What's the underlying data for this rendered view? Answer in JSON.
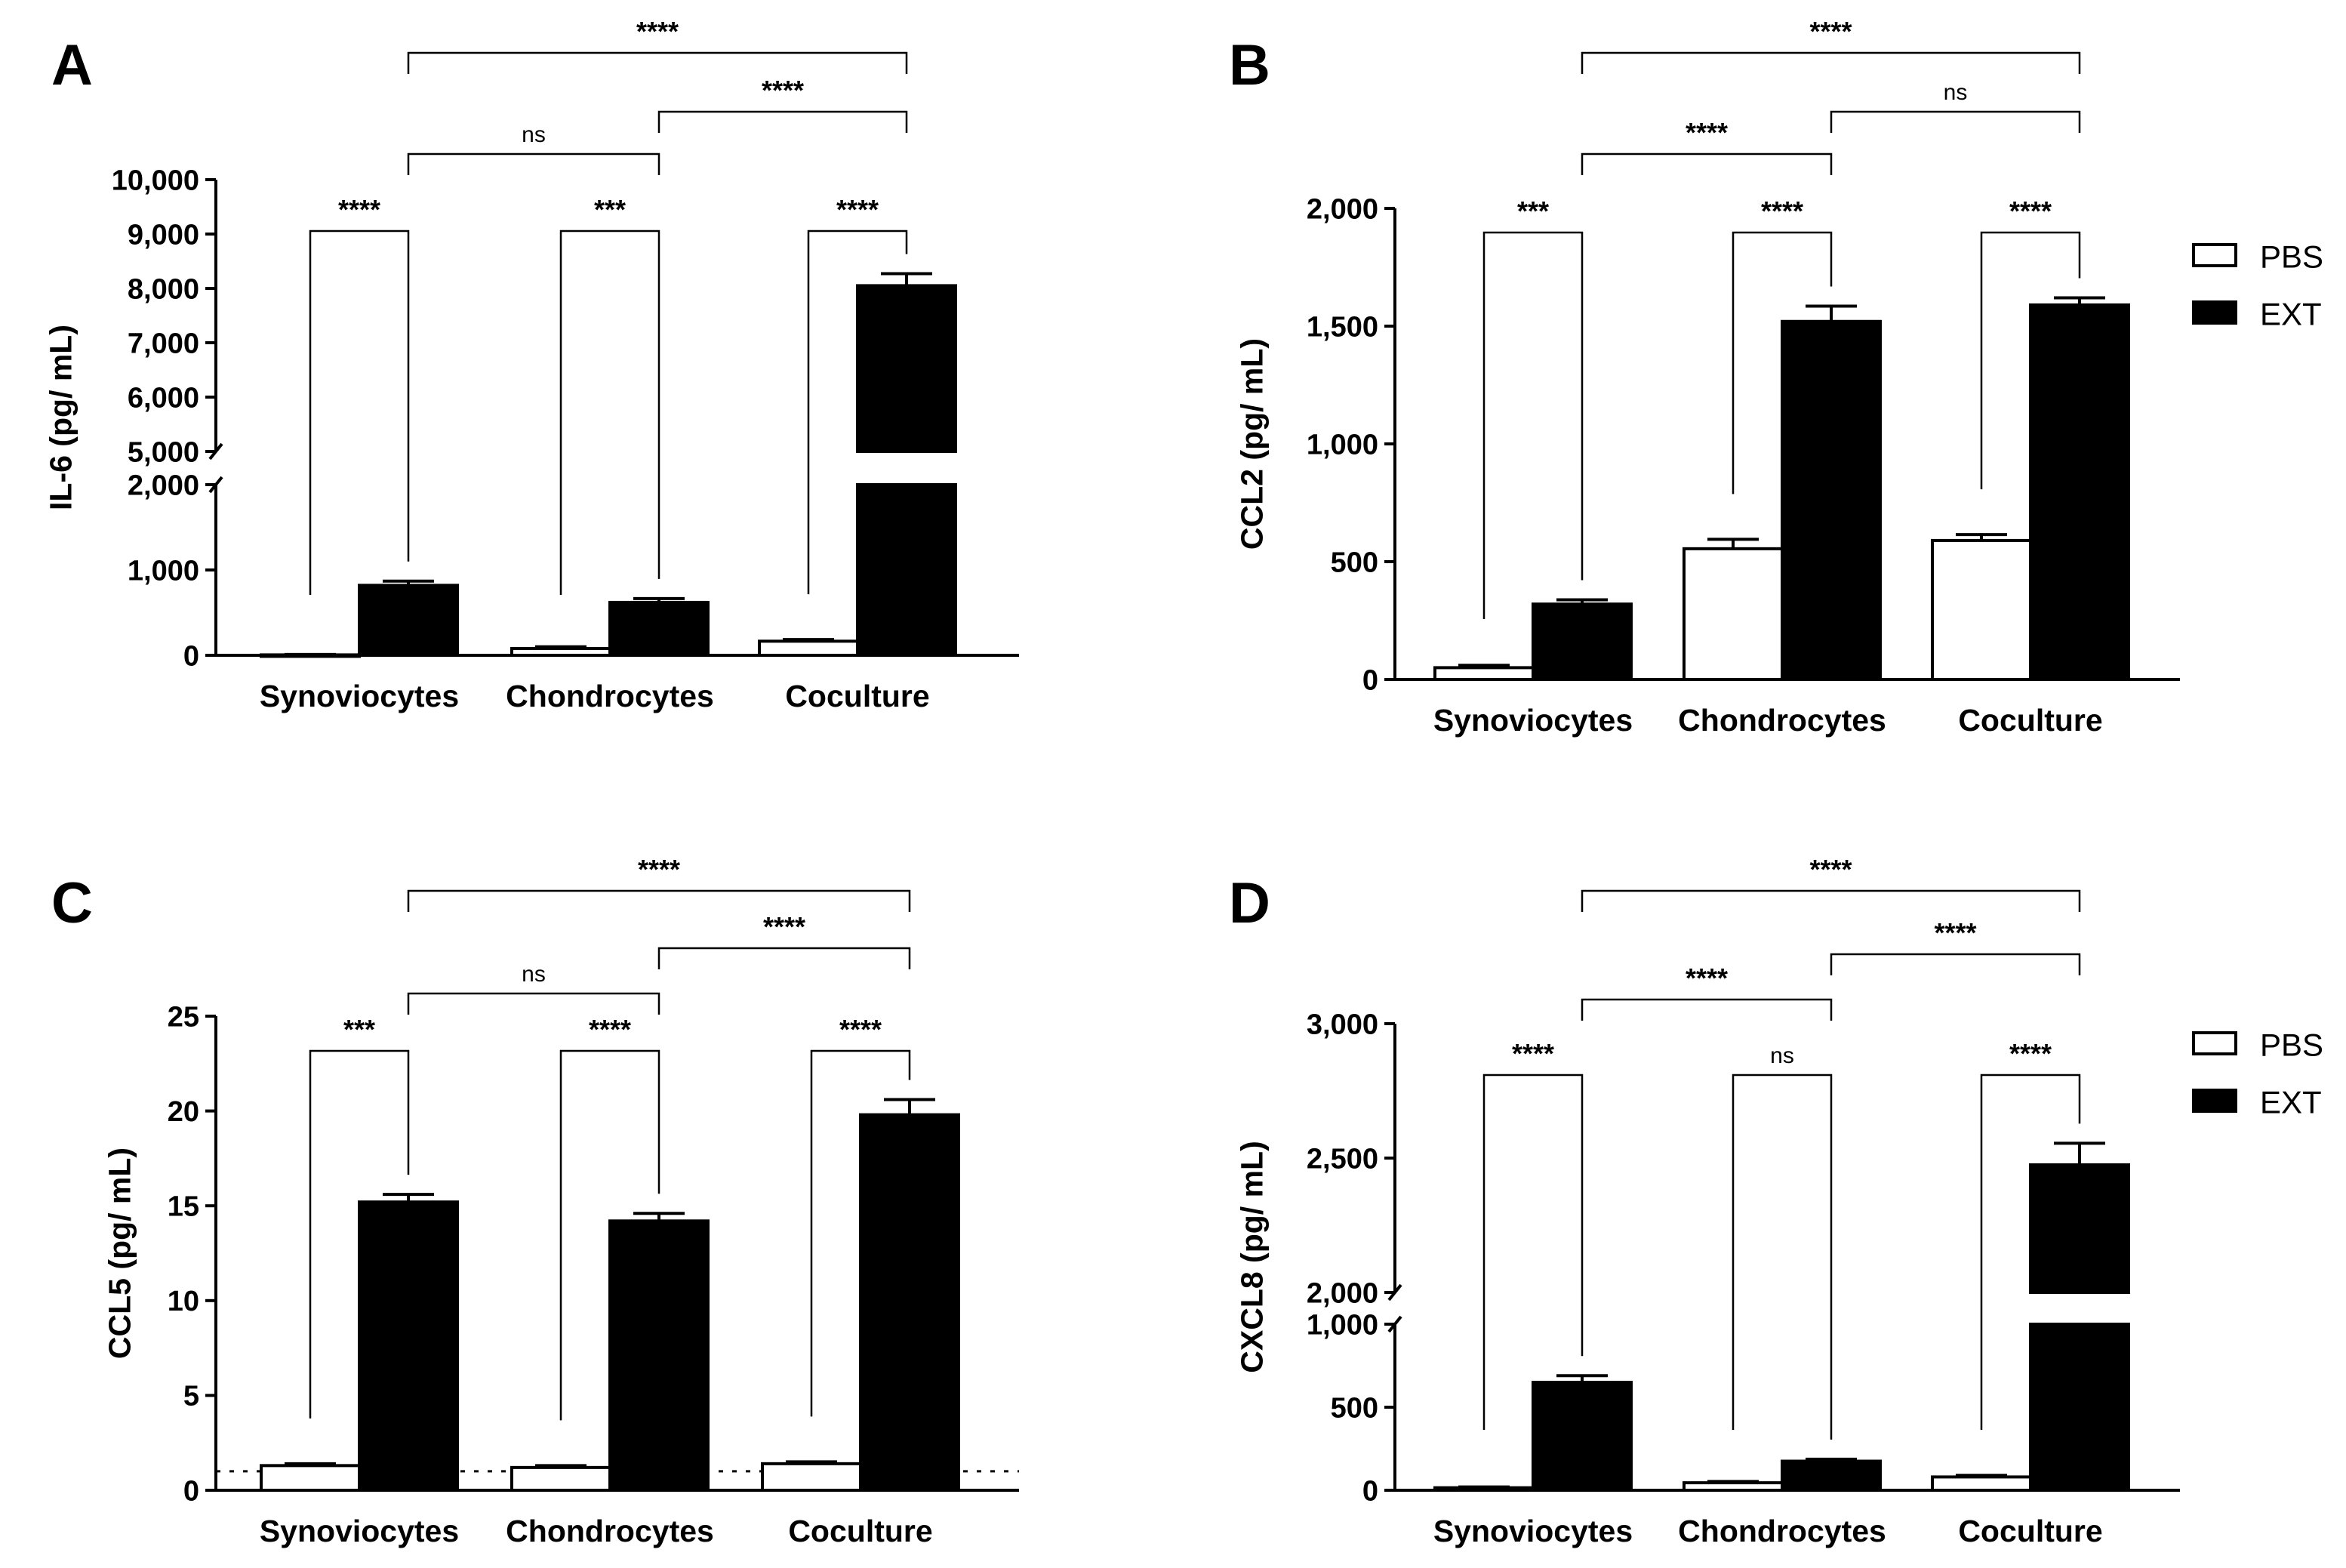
{
  "legend": {
    "items": [
      "PBS",
      "EXT"
    ],
    "colors": [
      "#ffffff",
      "#000000"
    ]
  },
  "chart_data": [
    {
      "panel": "A",
      "type": "bar",
      "ylabel": "IL-6 (pg/ mL)",
      "categories": [
        "Synoviocytes",
        "Chondrocytes",
        "Coculture"
      ],
      "series": [
        {
          "name": "PBS",
          "values": [
            5,
            80,
            165
          ],
          "errors": [
            5,
            20,
            20
          ]
        },
        {
          "name": "EXT",
          "values": [
            820,
            620,
            8050
          ],
          "errors": [
            50,
            45,
            220
          ]
        }
      ],
      "axis_break": {
        "lower": [
          0,
          2000
        ],
        "upper": [
          5000,
          10000
        ]
      },
      "yticks": [
        0,
        1000,
        2000,
        5000,
        6000,
        7000,
        8000,
        9000,
        10000
      ],
      "ytick_labels": [
        "0",
        "1,000",
        "2,000",
        "5,000",
        "6,000",
        "7,000",
        "8,000",
        "9,000",
        "10,000"
      ],
      "within": [
        "****",
        "***",
        "****"
      ],
      "between": [
        {
          "from": 0,
          "to": 1,
          "label": "ns"
        },
        {
          "from": 1,
          "to": 2,
          "label": "****"
        },
        {
          "from": 0,
          "to": 2,
          "label": "****"
        }
      ],
      "detection_limit": null
    },
    {
      "panel": "B",
      "type": "bar",
      "ylabel": "CCL2 (pg/ mL)",
      "categories": [
        "Synoviocytes",
        "Chondrocytes",
        "Coculture"
      ],
      "series": [
        {
          "name": "PBS",
          "values": [
            50,
            555,
            590
          ],
          "errors": [
            10,
            40,
            25
          ]
        },
        {
          "name": "EXT",
          "values": [
            320,
            1520,
            1590
          ],
          "errors": [
            18,
            65,
            30
          ]
        }
      ],
      "ylim": [
        0,
        2000
      ],
      "yticks": [
        0,
        500,
        1000,
        1500,
        2000
      ],
      "ytick_labels": [
        "0",
        "500",
        "1,000",
        "1,500",
        "2,000"
      ],
      "within": [
        "***",
        "****",
        "****"
      ],
      "between": [
        {
          "from": 0,
          "to": 1,
          "label": "****"
        },
        {
          "from": 1,
          "to": 2,
          "label": "ns"
        },
        {
          "from": 0,
          "to": 2,
          "label": "****"
        }
      ],
      "detection_limit": null
    },
    {
      "panel": "C",
      "type": "bar",
      "ylabel": "CCL5 (pg/ mL)",
      "categories": [
        "Synoviocytes",
        "Chondrocytes",
        "Coculture"
      ],
      "series": [
        {
          "name": "PBS",
          "values": [
            1.3,
            1.2,
            1.4
          ],
          "errors": [
            0.1,
            0.1,
            0.1
          ]
        },
        {
          "name": "EXT",
          "values": [
            15.2,
            14.2,
            19.8
          ],
          "errors": [
            0.4,
            0.4,
            0.8
          ]
        }
      ],
      "ylim": [
        0,
        25
      ],
      "yticks": [
        0,
        5,
        10,
        15,
        20,
        25
      ],
      "ytick_labels": [
        "0",
        "5",
        "10",
        "15",
        "20",
        "25"
      ],
      "within": [
        "***",
        "****",
        "****"
      ],
      "between": [
        {
          "from": 0,
          "to": 1,
          "label": "ns"
        },
        {
          "from": 1,
          "to": 2,
          "label": "****"
        },
        {
          "from": 0,
          "to": 2,
          "label": "****"
        }
      ],
      "detection_limit": 1.0
    },
    {
      "panel": "D",
      "type": "bar",
      "ylabel": "CXCL8 (pg/ mL)",
      "categories": [
        "Synoviocytes",
        "Chondrocytes",
        "Coculture"
      ],
      "series": [
        {
          "name": "PBS",
          "values": [
            15,
            45,
            80
          ],
          "errors": [
            5,
            8,
            10
          ]
        },
        {
          "name": "EXT",
          "values": [
            650,
            175,
            2475
          ],
          "errors": [
            40,
            12,
            80
          ]
        }
      ],
      "axis_break": {
        "lower": [
          0,
          1000
        ],
        "upper": [
          2000,
          3000
        ]
      },
      "yticks": [
        0,
        500,
        1000,
        2000,
        2500,
        3000
      ],
      "ytick_labels": [
        "0",
        "500",
        "1,000",
        "2,000",
        "2,500",
        "3,000"
      ],
      "within": [
        "****",
        "ns",
        "****"
      ],
      "between": [
        {
          "from": 0,
          "to": 1,
          "label": "****"
        },
        {
          "from": 1,
          "to": 2,
          "label": "****"
        },
        {
          "from": 0,
          "to": 2,
          "label": "****"
        }
      ],
      "detection_limit": null
    }
  ]
}
